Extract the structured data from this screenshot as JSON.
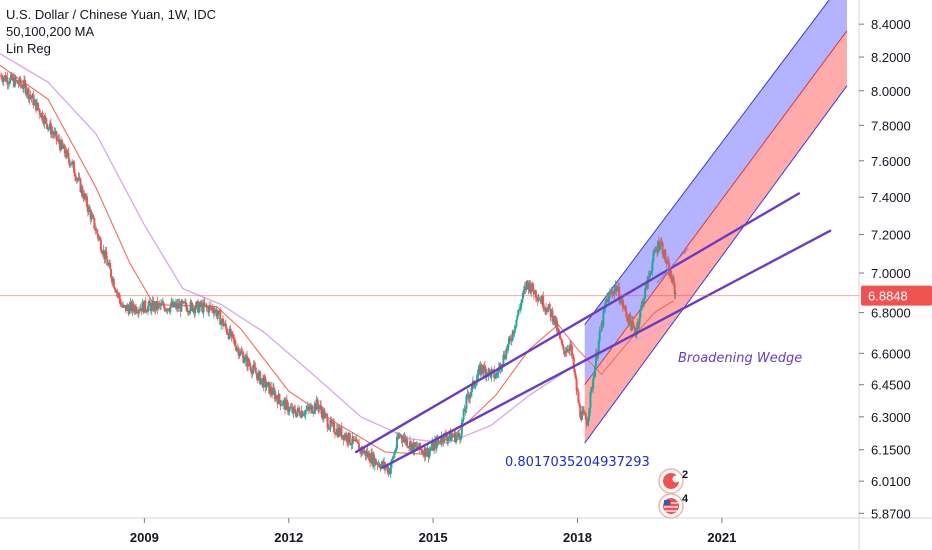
{
  "legend": {
    "symbol": "U.S. Dollar / Chinese Yuan, 1W, IDC",
    "ma": "50,100,200 MA",
    "linreg": "Lin Reg"
  },
  "colors": {
    "up": "#26a69a",
    "down": "#ef5350",
    "ma_fast": "#f06c60",
    "ma_slow": "#d7a8e6",
    "trendline": "#6a3cc6",
    "channel_upper_fill": "#9a9aff",
    "channel_lower_fill": "#ff8f8f",
    "price_label_bg": "#ef5350",
    "price_line": "#ef5350",
    "annotation_text": "#6a3cc6",
    "corr_text": "#1e2bd0"
  },
  "annotations": {
    "pattern_label": "Broadening Wedge",
    "correlation": "0.8017035204937293",
    "event_badges": [
      {
        "icon": "earnings-flag-icon",
        "count": "2"
      },
      {
        "icon": "us-flag-icon",
        "count": "4"
      }
    ]
  },
  "chart_data": {
    "type": "candlestick",
    "title": "U.S. Dollar / Chinese Yuan, 1W, IDC",
    "indicators": [
      "50,100,200 MA",
      "Lin Reg"
    ],
    "y_axis": {
      "scale": "log",
      "ylim": [
        5.85,
        8.55
      ],
      "tick_labels": [
        "8.4000",
        "8.2000",
        "8.0000",
        "7.8000",
        "7.6000",
        "7.4000",
        "7.2000",
        "7.0000",
        "6.8000",
        "6.6000",
        "6.4500",
        "6.3000",
        "6.1500",
        "6.0100",
        "5.8700"
      ],
      "tick_values": [
        8.4,
        8.2,
        8.0,
        7.8,
        7.6,
        7.4,
        7.2,
        7.0,
        6.8,
        6.6,
        6.45,
        6.3,
        6.15,
        6.01,
        5.87
      ]
    },
    "x_axis": {
      "xlim": [
        2006.0,
        2023.85
      ],
      "tick_labels": [
        "2009",
        "2012",
        "2015",
        "2018",
        "2021"
      ],
      "tick_values": [
        2009.0,
        2012.0,
        2015.0,
        2018.0,
        2021.0
      ]
    },
    "last_price": 6.8848,
    "last_price_label": "6.8848",
    "price_path": [
      [
        2006.0,
        8.09
      ],
      [
        2006.5,
        8.03
      ],
      [
        2007.0,
        7.8
      ],
      [
        2007.5,
        7.58
      ],
      [
        2008.0,
        7.22
      ],
      [
        2008.3,
        7.0
      ],
      [
        2008.55,
        6.82
      ],
      [
        2009.0,
        6.83
      ],
      [
        2009.5,
        6.83
      ],
      [
        2010.0,
        6.83
      ],
      [
        2010.45,
        6.82
      ],
      [
        2010.8,
        6.68
      ],
      [
        2011.0,
        6.6
      ],
      [
        2011.4,
        6.48
      ],
      [
        2011.8,
        6.38
      ],
      [
        2012.1,
        6.32
      ],
      [
        2012.4,
        6.33
      ],
      [
        2012.6,
        6.36
      ],
      [
        2012.85,
        6.26
      ],
      [
        2013.2,
        6.21
      ],
      [
        2013.5,
        6.15
      ],
      [
        2013.8,
        6.1
      ],
      [
        2014.1,
        6.06
      ],
      [
        2014.3,
        6.22
      ],
      [
        2014.6,
        6.16
      ],
      [
        2014.9,
        6.14
      ],
      [
        2015.2,
        6.21
      ],
      [
        2015.55,
        6.21
      ],
      [
        2015.7,
        6.38
      ],
      [
        2016.0,
        6.53
      ],
      [
        2016.3,
        6.49
      ],
      [
        2016.6,
        6.66
      ],
      [
        2016.95,
        6.95
      ],
      [
        2017.2,
        6.88
      ],
      [
        2017.5,
        6.78
      ],
      [
        2017.7,
        6.61
      ],
      [
        2017.85,
        6.64
      ],
      [
        2018.05,
        6.32
      ],
      [
        2018.2,
        6.28
      ],
      [
        2018.4,
        6.6
      ],
      [
        2018.6,
        6.86
      ],
      [
        2018.8,
        6.93
      ],
      [
        2019.0,
        6.8
      ],
      [
        2019.2,
        6.7
      ],
      [
        2019.4,
        6.9
      ],
      [
        2019.6,
        7.1
      ],
      [
        2019.72,
        7.17
      ],
      [
        2019.85,
        7.05
      ],
      [
        2019.98,
        6.95
      ],
      [
        2020.05,
        6.88
      ]
    ],
    "ma_fast": [
      [
        2006.0,
        8.15
      ],
      [
        2007.0,
        7.95
      ],
      [
        2008.0,
        7.45
      ],
      [
        2008.7,
        7.05
      ],
      [
        2009.2,
        6.84
      ],
      [
        2010.5,
        6.83
      ],
      [
        2011.0,
        6.72
      ],
      [
        2012.0,
        6.42
      ],
      [
        2013.0,
        6.27
      ],
      [
        2014.0,
        6.14
      ],
      [
        2014.8,
        6.13
      ],
      [
        2015.5,
        6.23
      ],
      [
        2016.3,
        6.4
      ],
      [
        2017.0,
        6.62
      ],
      [
        2017.6,
        6.74
      ],
      [
        2018.0,
        6.62
      ],
      [
        2018.5,
        6.5
      ],
      [
        2019.0,
        6.64
      ],
      [
        2019.6,
        6.8
      ],
      [
        2020.0,
        6.86
      ]
    ],
    "ma_slow": [
      [
        2006.0,
        8.22
      ],
      [
        2007.0,
        8.05
      ],
      [
        2008.0,
        7.75
      ],
      [
        2009.0,
        7.25
      ],
      [
        2009.8,
        6.92
      ],
      [
        2010.6,
        6.84
      ],
      [
        2011.5,
        6.7
      ],
      [
        2012.5,
        6.5
      ],
      [
        2013.5,
        6.3
      ],
      [
        2014.5,
        6.2
      ],
      [
        2015.3,
        6.18
      ],
      [
        2016.2,
        6.26
      ],
      [
        2017.0,
        6.4
      ],
      [
        2017.8,
        6.52
      ],
      [
        2018.5,
        6.62
      ],
      [
        2019.2,
        6.66
      ],
      [
        2020.0,
        6.76
      ]
    ],
    "lin_reg_channel": {
      "start_x": 2018.15,
      "end_x": 2023.6,
      "upper": [
        6.74,
        8.7
      ],
      "mid": [
        6.45,
        8.36
      ],
      "lower": [
        6.18,
        8.03
      ]
    },
    "trendlines": [
      {
        "from": [
          2013.4,
          6.14
        ],
        "to": [
          2022.6,
          7.42
        ]
      },
      {
        "from": [
          2013.95,
          6.07
        ],
        "to": [
          2023.25,
          7.22
        ]
      }
    ],
    "mini_channel": {
      "from": [
        2019.65,
        6.95
      ],
      "to": [
        2020.3,
        7.13
      ]
    }
  }
}
